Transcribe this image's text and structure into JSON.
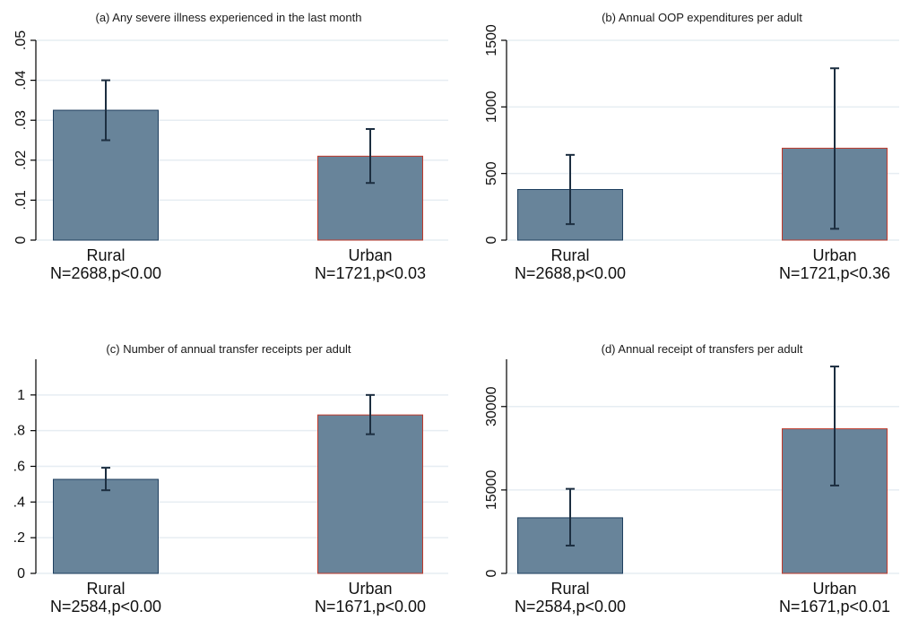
{
  "figure_colors": {
    "bar_fill": "#68849a",
    "bar_stroke_rural": "#1f3f5f",
    "bar_stroke_urban": "#c0392b",
    "error_bar": "#1c2e40",
    "grid": "#e6edf2",
    "axis": "#000000"
  },
  "chart_data": [
    {
      "type": "bar",
      "title": "(a) Any severe illness experienced in the last month",
      "categories": [
        "Rural",
        "Urban"
      ],
      "category_sublabels": [
        "N=2688,p<0.00",
        "N=1721,p<0.03"
      ],
      "values": [
        0.0325,
        0.021
      ],
      "error_low": [
        0.025,
        0.0143
      ],
      "error_high": [
        0.04,
        0.0278
      ],
      "yticks": [
        0,
        0.01,
        0.02,
        0.03,
        0.04,
        0.05
      ],
      "ytick_labels": [
        "0",
        ".01",
        ".02",
        ".03",
        ".04",
        ".05"
      ],
      "ylim": [
        0,
        0.05
      ],
      "grid": true
    },
    {
      "type": "bar",
      "title": "(b) Annual OOP expenditures per adult",
      "categories": [
        "Rural",
        "Urban"
      ],
      "category_sublabels": [
        "N=2688,p<0.00",
        "N=1721,p<0.36"
      ],
      "values": [
        380,
        690
      ],
      "error_low": [
        120,
        85
      ],
      "error_high": [
        640,
        1290
      ],
      "yticks": [
        0,
        500,
        1000,
        1500
      ],
      "ytick_labels": [
        "0",
        "500",
        "1000",
        "1500"
      ],
      "ylim": [
        0,
        1500
      ],
      "grid": true
    },
    {
      "type": "bar",
      "title": "(c) Number of annual transfer receipts per adult",
      "categories": [
        "Rural",
        "Urban"
      ],
      "category_sublabels": [
        "N=2584,p<0.00",
        "N=1671,p<0.00"
      ],
      "values": [
        0.527,
        0.888
      ],
      "error_low": [
        0.466,
        0.78
      ],
      "error_high": [
        0.592,
        1.0
      ],
      "yticks": [
        0,
        0.2,
        0.4,
        0.6,
        0.8,
        1
      ],
      "ytick_labels": [
        "0",
        ".2",
        ".4",
        ".6",
        ".8",
        "1"
      ],
      "ylim": [
        0,
        1.2
      ],
      "grid": true
    },
    {
      "type": "bar",
      "title": "(d) Annual receipt of transfers per adult",
      "categories": [
        "Rural",
        "Urban"
      ],
      "category_sublabels": [
        "N=2584,p<0.00",
        "N=1671,p<0.01"
      ],
      "values": [
        10000,
        26000
      ],
      "error_low": [
        5000,
        15800
      ],
      "error_high": [
        15200,
        37200
      ],
      "yticks": [
        0,
        15000,
        30000
      ],
      "ytick_labels": [
        "0",
        "15000",
        "30000"
      ],
      "ylim": [
        0,
        38500
      ],
      "grid": true
    }
  ]
}
